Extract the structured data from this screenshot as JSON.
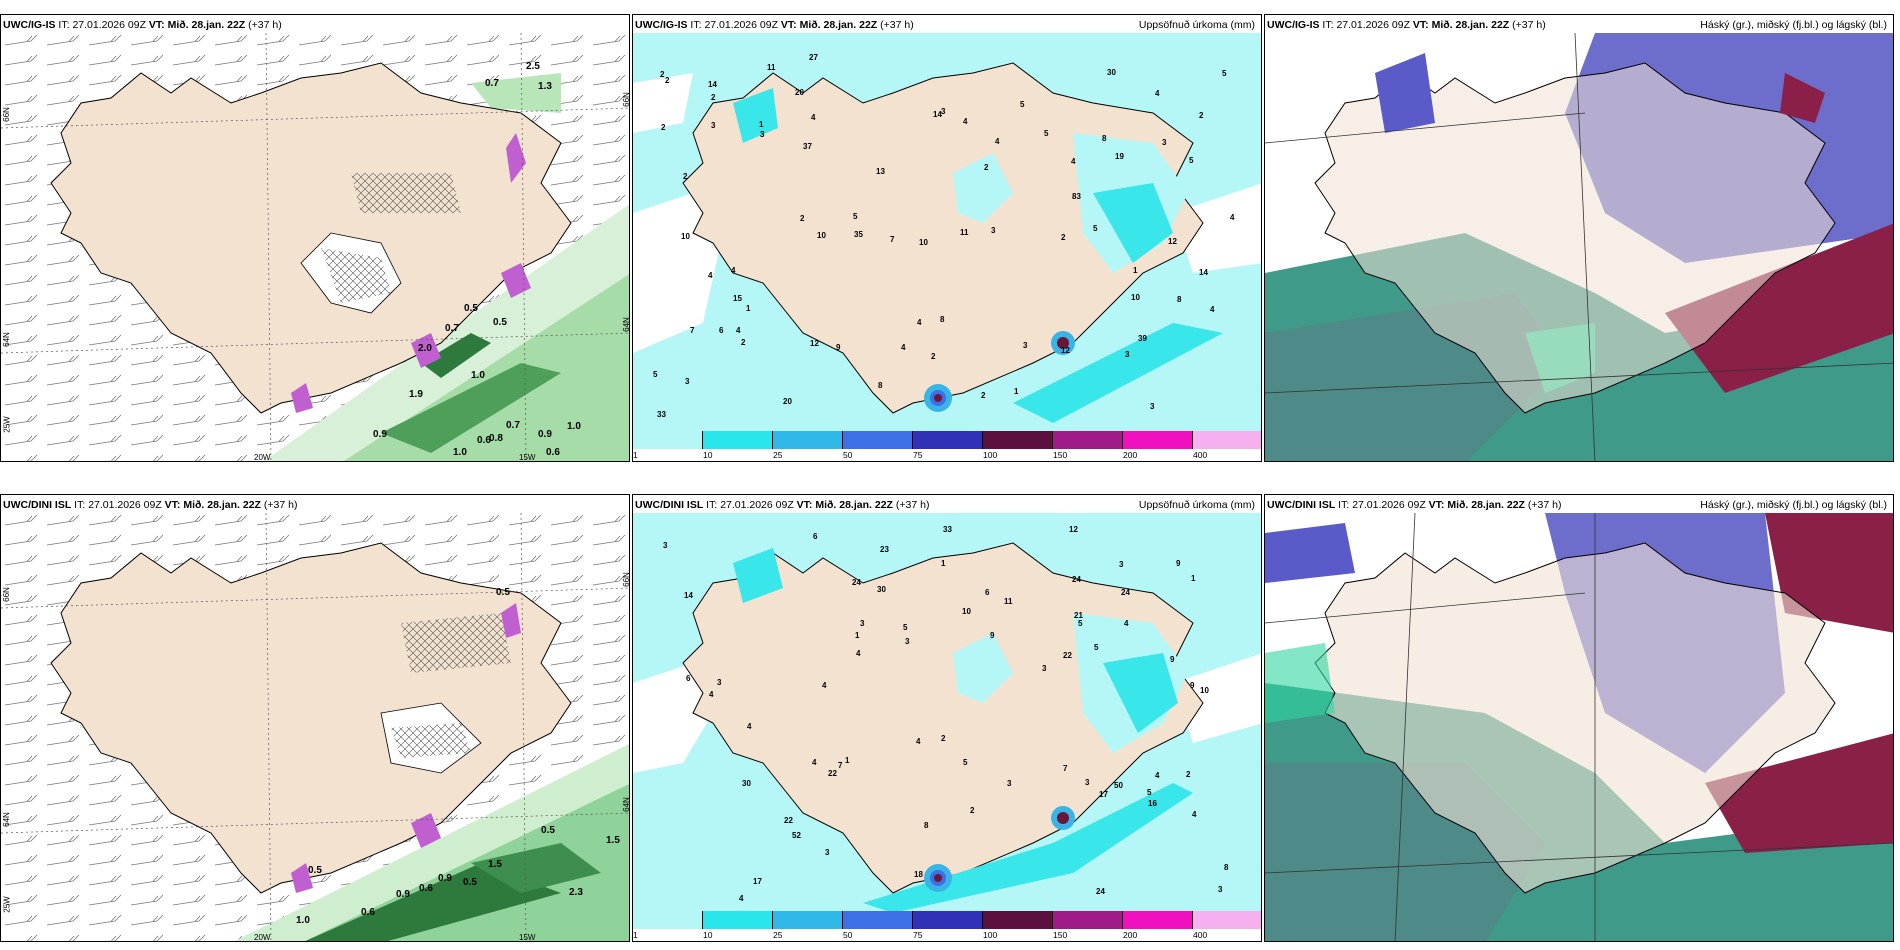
{
  "panels": [
    {
      "id": "top-left",
      "model": "UWC/IG-IS",
      "it_label": "IT:",
      "it": "27.01.2026 09Z",
      "vt_label": "VT:",
      "vt": "Mið. 28.jan. 22Z",
      "lead": "(+37 h)",
      "right_title": "",
      "lat_labels": [
        "66N",
        "64N",
        "25W"
      ],
      "lon_labels": [
        "20W",
        "15W"
      ],
      "side_labels": [
        "66N",
        "64N"
      ],
      "values": [
        "2.5",
        "0.7",
        "1.3",
        "0.5",
        "0.7",
        "2.0",
        "0.5",
        "1.0",
        "1.9",
        "0.9",
        "0.7",
        "0.9",
        "1.0",
        "0.8",
        "0.6",
        "1.0",
        "0.6"
      ]
    },
    {
      "id": "top-middle",
      "model": "UWC/IG-IS",
      "it_label": "IT:",
      "it": "27.01.2026 09Z",
      "vt_label": "VT:",
      "vt": "Mið. 28.jan. 22Z",
      "lead": "(+37 h)",
      "right_title": "Uppsöfnuð úrkoma (mm)",
      "colorbar_ticks": [
        "1",
        "10",
        "25",
        "50",
        "75",
        "100",
        "150",
        "200",
        "400"
      ],
      "values": [
        "5",
        "4",
        "4",
        "3",
        "2",
        "2",
        "2",
        "2",
        "10",
        "11",
        "12",
        "1",
        "2",
        "4",
        "3",
        "3",
        "1",
        "1",
        "3",
        "5",
        "1",
        "2",
        "5",
        "4",
        "8",
        "5",
        "3",
        "4",
        "8",
        "8",
        "14",
        "12",
        "5",
        "7",
        "4",
        "10",
        "27",
        "5",
        "4",
        "33",
        "35",
        "30",
        "4",
        "12",
        "15",
        "10",
        "13",
        "37",
        "39",
        "83",
        "14",
        "4",
        "2",
        "4",
        "2",
        "2",
        "2",
        "3",
        "2",
        "3",
        "3",
        "9",
        "7",
        "4",
        "14",
        "19",
        "20",
        "20",
        "5",
        "6",
        "3",
        "8",
        "11",
        "4",
        "2",
        "10"
      ]
    },
    {
      "id": "top-right",
      "model": "UWC/IG-IS",
      "it_label": "IT:",
      "it": "27.01.2026 09Z",
      "vt_label": "VT:",
      "vt": "Mið. 28.jan. 22Z",
      "lead": "(+37 h)",
      "right_title": "Háský (gr.), miðský (fj.bl.) og lágský (bl.)"
    },
    {
      "id": "bottom-left",
      "model": "UWC/DINI ISL",
      "it_label": "IT:",
      "it": "27.01.2026 09Z",
      "vt_label": "VT:",
      "vt": "Mið. 28.jan. 22Z",
      "lead": "(+37 h)",
      "right_title": "",
      "lat_labels": [
        "66N",
        "64N",
        "25W"
      ],
      "lon_labels": [
        "20W",
        "15W"
      ],
      "side_labels": [
        "66N",
        "64N"
      ],
      "values": [
        "0.5",
        "0.5",
        "1.5",
        "0.9",
        "0.6",
        "0.5",
        "0.9",
        "1.5",
        "2.3",
        "1.0",
        "0.6",
        "0.5"
      ]
    },
    {
      "id": "bottom-middle",
      "model": "UWC/DINI ISL",
      "it_label": "IT:",
      "it": "27.01.2026 09Z",
      "vt_label": "VT:",
      "vt": "Mið. 28.jan. 22Z",
      "lead": "(+37 h)",
      "right_title": "Uppsöfnuð úrkoma (mm)",
      "colorbar_ticks": [
        "1",
        "10",
        "25",
        "50",
        "75",
        "100",
        "150",
        "200",
        "400"
      ],
      "values": [
        "10",
        "4",
        "5",
        "3",
        "24",
        "16",
        "23",
        "4",
        "4",
        "3",
        "1",
        "1",
        "3",
        "1",
        "3",
        "3",
        "5",
        "2",
        "1",
        "2",
        "6",
        "5",
        "9",
        "3",
        "3",
        "6",
        "12",
        "11",
        "8",
        "5",
        "24",
        "4",
        "4",
        "3",
        "7",
        "24",
        "50",
        "30",
        "4",
        "17",
        "21",
        "30",
        "24",
        "14",
        "4",
        "9",
        "22",
        "52",
        "2",
        "3",
        "17",
        "4",
        "7",
        "5",
        "9",
        "10",
        "8",
        "9",
        "22",
        "22",
        "18",
        "33",
        "6",
        "4",
        "4",
        "3"
      ]
    },
    {
      "id": "bottom-right",
      "model": "UWC/DINI ISL",
      "it_label": "IT:",
      "it": "27.01.2026 09Z",
      "vt_label": "VT:",
      "vt": "Mið. 28.jan. 22Z",
      "lead": "(+37 h)",
      "right_title": "Háský (gr.), miðský (fj.bl.) og lágský (bl.)"
    }
  ],
  "colors": {
    "land": "#f3e2cf",
    "sea_precip": "#b5f7f7",
    "cyan": "#39e6ea",
    "blue1": "#39b4e6",
    "blue2": "#3d6fe6",
    "navy": "#2626a8",
    "maroon": "#6a1638",
    "purple": "#9a1a80",
    "magenta": "#f00cc0",
    "pink": "#f6a8f0",
    "green_light": "#c8ecc8",
    "green_mid": "#6ec37a",
    "green_dark": "#2d8a45",
    "cloud_high": "#8a8f8f",
    "cloud_mid": "#5a5ac8",
    "cloud_low": "#2ed6a2",
    "cloud_bg": "#6d6dcc"
  },
  "colorbar_colors": [
    "#b5f7f7",
    "#28e6ea",
    "#2fb8e8",
    "#3d6fe6",
    "#3030b8",
    "#5c1040",
    "#a01a88",
    "#f010c0",
    "#f6b0f0"
  ]
}
